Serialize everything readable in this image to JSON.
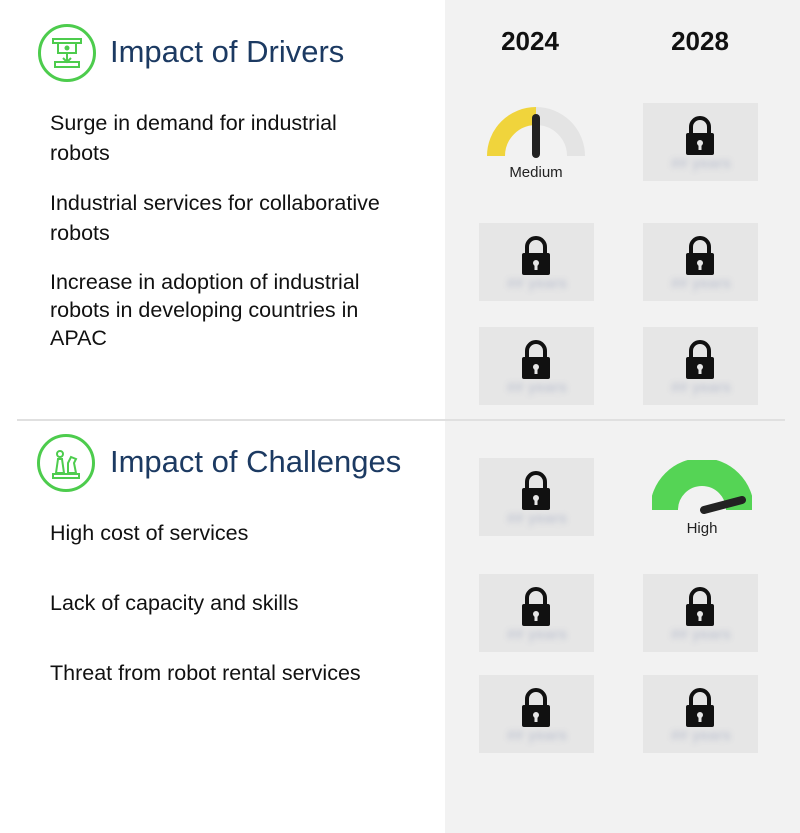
{
  "years": [
    "2024",
    "2028"
  ],
  "drivers": {
    "title": "Impact of Drivers",
    "icon": "robot-arm-icon",
    "rows": [
      {
        "label": "Surge in demand for industrial robots"
      },
      {
        "label": "Industrial services for collaborative robots"
      },
      {
        "label": "Increase in adoption of industrial robots in developing countries in APAC"
      }
    ]
  },
  "challenges": {
    "title": "Impact of Challenges",
    "icon": "chess-pieces-icon",
    "rows": [
      {
        "label": "High cost of services"
      },
      {
        "label": "Lack of capacity and skills"
      },
      {
        "label": "Threat from robot rental services"
      }
    ]
  },
  "gauges": {
    "medium": {
      "label": "Medium",
      "color": "#f0d43c"
    },
    "high": {
      "label": "High",
      "color": "#55d455"
    }
  },
  "locked_placeholder": "## years",
  "colors": {
    "accent_green": "#4dcc4d",
    "title_navy": "#1c3a62",
    "panel_gray": "#f2f2f2"
  }
}
